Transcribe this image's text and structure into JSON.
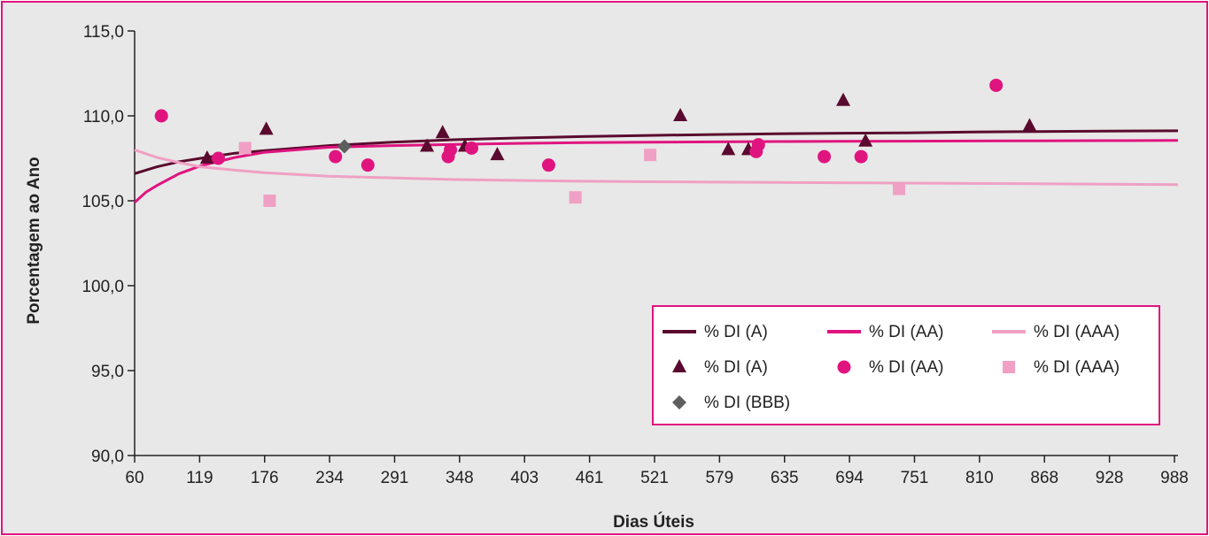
{
  "chart_data": {
    "type": "scatter",
    "title": "",
    "xlabel": "Dias Úteis",
    "ylabel": "Porcentagem ao Ano",
    "xlim": [
      60,
      995
    ],
    "ylim": [
      90,
      115
    ],
    "grid": false,
    "legend_position": "bottom-right",
    "x_tick_labels": [
      "60",
      "119",
      "176",
      "234",
      "291",
      "348",
      "403",
      "461",
      "521",
      "579",
      "635",
      "694",
      "751",
      "810",
      "868",
      "928",
      "988"
    ],
    "y_tick_labels": [
      "90,0",
      "95,0",
      "100,0",
      "105,0",
      "110,0",
      "115,0"
    ],
    "y_ticks": [
      90,
      95,
      100,
      105,
      110,
      115
    ],
    "colors": {
      "A": "#5a0a2e",
      "AA": "#e0147f",
      "AAA": "#f0a0c4",
      "BBB": "#5e5e5e",
      "frame": "#e0147f",
      "background": "#e8e8e8"
    },
    "series": [
      {
        "name": "% DI (A)",
        "kind": "trend",
        "color": "#5a0a2e",
        "points": [
          [
            60,
            106.6
          ],
          [
            80,
            107.0
          ],
          [
            100,
            107.3
          ],
          [
            119,
            107.5
          ],
          [
            150,
            107.8
          ],
          [
            176,
            107.95
          ],
          [
            234,
            108.25
          ],
          [
            291,
            108.45
          ],
          [
            348,
            108.6
          ],
          [
            403,
            108.7
          ],
          [
            461,
            108.78
          ],
          [
            521,
            108.85
          ],
          [
            579,
            108.9
          ],
          [
            635,
            108.95
          ],
          [
            694,
            108.98
          ],
          [
            751,
            109.0
          ],
          [
            810,
            109.05
          ],
          [
            868,
            109.08
          ],
          [
            928,
            109.1
          ],
          [
            995,
            109.12
          ]
        ]
      },
      {
        "name": "% DI (AA)",
        "kind": "trend",
        "color": "#e0147f",
        "points": [
          [
            60,
            104.9
          ],
          [
            70,
            105.5
          ],
          [
            80,
            105.9
          ],
          [
            100,
            106.6
          ],
          [
            119,
            107.05
          ],
          [
            150,
            107.55
          ],
          [
            176,
            107.85
          ],
          [
            234,
            108.15
          ],
          [
            291,
            108.25
          ],
          [
            348,
            108.32
          ],
          [
            403,
            108.38
          ],
          [
            461,
            108.42
          ],
          [
            521,
            108.45
          ],
          [
            579,
            108.47
          ],
          [
            635,
            108.49
          ],
          [
            694,
            108.5
          ],
          [
            751,
            108.51
          ],
          [
            810,
            108.52
          ],
          [
            868,
            108.53
          ],
          [
            928,
            108.54
          ],
          [
            995,
            108.55
          ]
        ]
      },
      {
        "name": "% DI (AAA)",
        "kind": "trend",
        "color": "#f0a0c4",
        "points": [
          [
            60,
            108.0
          ],
          [
            80,
            107.55
          ],
          [
            100,
            107.25
          ],
          [
            119,
            107.0
          ],
          [
            150,
            106.8
          ],
          [
            176,
            106.65
          ],
          [
            234,
            106.45
          ],
          [
            291,
            106.35
          ],
          [
            348,
            106.25
          ],
          [
            403,
            106.2
          ],
          [
            461,
            106.15
          ],
          [
            521,
            106.12
          ],
          [
            579,
            106.1
          ],
          [
            635,
            106.08
          ],
          [
            694,
            106.06
          ],
          [
            751,
            106.04
          ],
          [
            810,
            106.02
          ],
          [
            868,
            106.0
          ],
          [
            928,
            105.98
          ],
          [
            995,
            105.95
          ]
        ]
      },
      {
        "name": "% DI (A)",
        "kind": "points",
        "marker": "triangle",
        "color": "#5a0a2e",
        "points": [
          [
            125,
            107.5
          ],
          [
            178,
            109.2
          ],
          [
            322,
            108.2
          ],
          [
            336,
            109.0
          ],
          [
            356,
            108.2
          ],
          [
            385,
            107.7
          ],
          [
            549,
            110.0
          ],
          [
            592,
            108.0
          ],
          [
            610,
            108.0
          ],
          [
            695,
            110.9
          ],
          [
            715,
            108.5
          ],
          [
            862,
            109.4
          ]
        ]
      },
      {
        "name": "% DI (AA)",
        "kind": "points",
        "marker": "circle",
        "color": "#e0147f",
        "points": [
          [
            84,
            110.0
          ],
          [
            135,
            107.5
          ],
          [
            240,
            107.6
          ],
          [
            269,
            107.1
          ],
          [
            341,
            107.6
          ],
          [
            343,
            108.0
          ],
          [
            362,
            108.1
          ],
          [
            431,
            107.1
          ],
          [
            617,
            107.9
          ],
          [
            619,
            108.3
          ],
          [
            678,
            107.6
          ],
          [
            711,
            107.6
          ],
          [
            832,
            111.8
          ]
        ]
      },
      {
        "name": "% DI (AAA)",
        "kind": "points",
        "marker": "square",
        "color": "#f0a0c4",
        "points": [
          [
            159,
            108.1
          ],
          [
            181,
            105.0
          ],
          [
            455,
            105.2
          ],
          [
            522,
            107.7
          ],
          [
            745,
            105.7
          ]
        ]
      },
      {
        "name": "% DI (BBB)",
        "kind": "points",
        "marker": "diamond",
        "color": "#5e5e5e",
        "points": [
          [
            248,
            108.2
          ]
        ]
      }
    ]
  }
}
